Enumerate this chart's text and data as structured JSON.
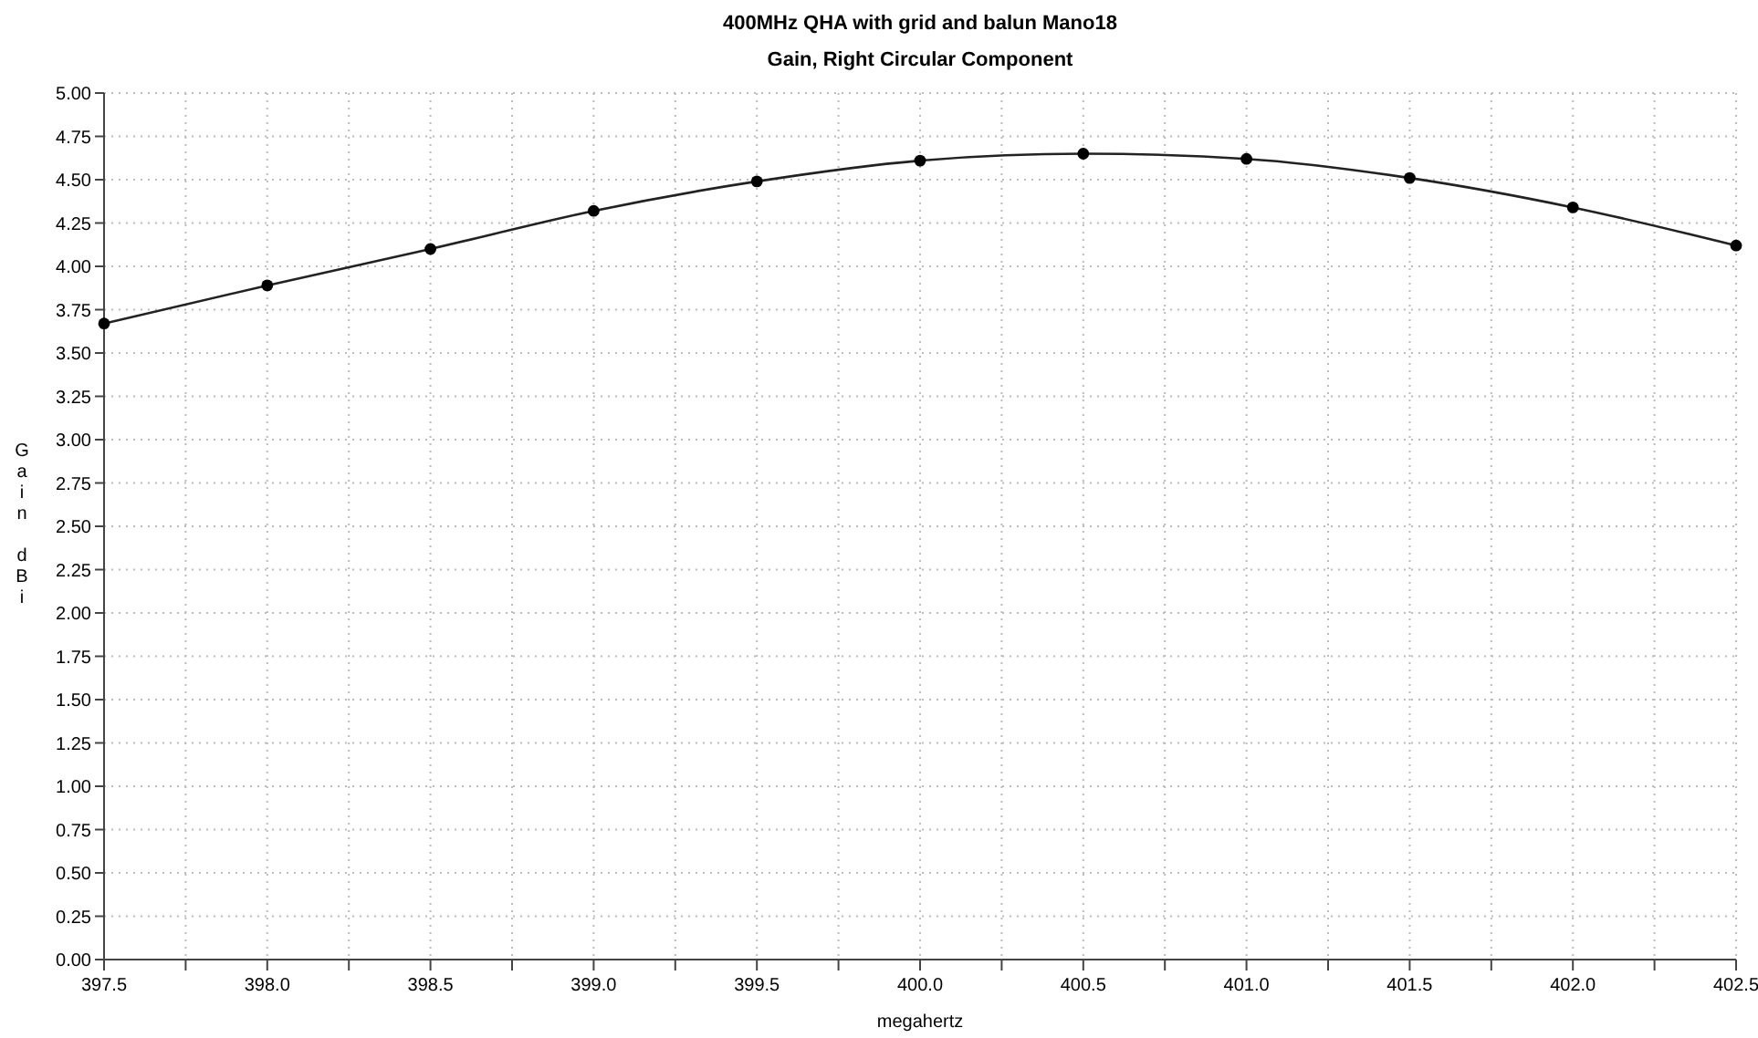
{
  "chart_data": {
    "type": "line",
    "title": "400MHz QHA with grid  and balun Mano18",
    "subtitle": "Gain, Right Circular Component",
    "xlabel": "megahertz",
    "ylabel": "Gain dBi",
    "x": [
      397.5,
      398.0,
      398.5,
      399.0,
      399.5,
      400.0,
      400.5,
      401.0,
      401.5,
      402.0,
      402.5
    ],
    "series": [
      {
        "color": "#222222",
        "values": [
          3.67,
          3.89,
          4.1,
          4.32,
          4.49,
          4.61,
          4.65,
          4.62,
          4.51,
          4.34,
          4.12
        ]
      }
    ],
    "xlim": [
      397.5,
      402.5
    ],
    "xticks": [
      {
        "value": 397.5,
        "label": "397.5"
      },
      {
        "value": 397.75,
        "label": null
      },
      {
        "value": 398,
        "label": "398.0"
      },
      {
        "value": 398.25,
        "label": null
      },
      {
        "value": 398.5,
        "label": "398.5"
      },
      {
        "value": 398.75,
        "label": null
      },
      {
        "value": 399,
        "label": "399.0"
      },
      {
        "value": 399.25,
        "label": null
      },
      {
        "value": 399.5,
        "label": "399.5"
      },
      {
        "value": 399.75,
        "label": null
      },
      {
        "value": 400,
        "label": "400.0"
      },
      {
        "value": 400.25,
        "label": null
      },
      {
        "value": 400.5,
        "label": "400.5"
      },
      {
        "value": 400.75,
        "label": null
      },
      {
        "value": 401,
        "label": "401.0"
      },
      {
        "value": 401.25,
        "label": null
      },
      {
        "value": 401.5,
        "label": "401.5"
      },
      {
        "value": 401.75,
        "label": null
      },
      {
        "value": 402,
        "label": "402.0"
      },
      {
        "value": 402.25,
        "label": null
      },
      {
        "value": 402.5,
        "label": "402.5"
      }
    ],
    "ylim": [
      0,
      5
    ],
    "yticks": [
      {
        "value": 0,
        "label": "0.00"
      },
      {
        "value": 0.25,
        "label": "0.25"
      },
      {
        "value": 0.5,
        "label": "0.50"
      },
      {
        "value": 0.75,
        "label": "0.75"
      },
      {
        "value": 1,
        "label": "1.00"
      },
      {
        "value": 1.25,
        "label": "1.25"
      },
      {
        "value": 1.5,
        "label": "1.50"
      },
      {
        "value": 1.75,
        "label": "1.75"
      },
      {
        "value": 2,
        "label": "2.00"
      },
      {
        "value": 2.25,
        "label": "2.25"
      },
      {
        "value": 2.5,
        "label": "2.50"
      },
      {
        "value": 2.75,
        "label": "2.75"
      },
      {
        "value": 3,
        "label": "3.00"
      },
      {
        "value": 3.25,
        "label": "3.25"
      },
      {
        "value": 3.5,
        "label": "3.50"
      },
      {
        "value": 3.75,
        "label": "3.75"
      },
      {
        "value": 4,
        "label": "4.00"
      },
      {
        "value": 4.25,
        "label": "4.25"
      },
      {
        "value": 4.5,
        "label": "4.50"
      },
      {
        "value": 4.75,
        "label": "4.75"
      },
      {
        "value": 5,
        "label": "5.00"
      }
    ],
    "grid": true,
    "marker": "circle",
    "line_style": "solid"
  }
}
